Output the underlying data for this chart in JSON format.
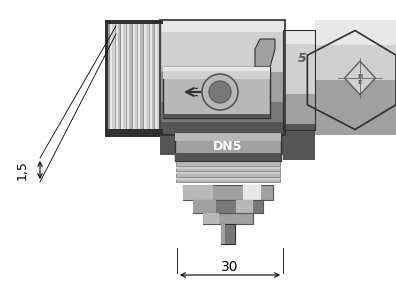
{
  "bg_color": "#ffffff",
  "fig_width": 3.96,
  "fig_height": 2.95,
  "dpi": 100,
  "dim_15_label": "1,5",
  "dim_30_label": "30",
  "label_DN5": "DN5",
  "dim_color": "#000000",
  "c_lightest": "#e8e8e8",
  "c_light": "#d0d0d0",
  "c_mid_light": "#b8b8b8",
  "c_mid": "#a0a0a0",
  "c_dark": "#787878",
  "c_darker": "#555555",
  "c_darkest": "#303030",
  "c_black": "#111111",
  "font_size_dim": 9,
  "font_size_label": 8
}
